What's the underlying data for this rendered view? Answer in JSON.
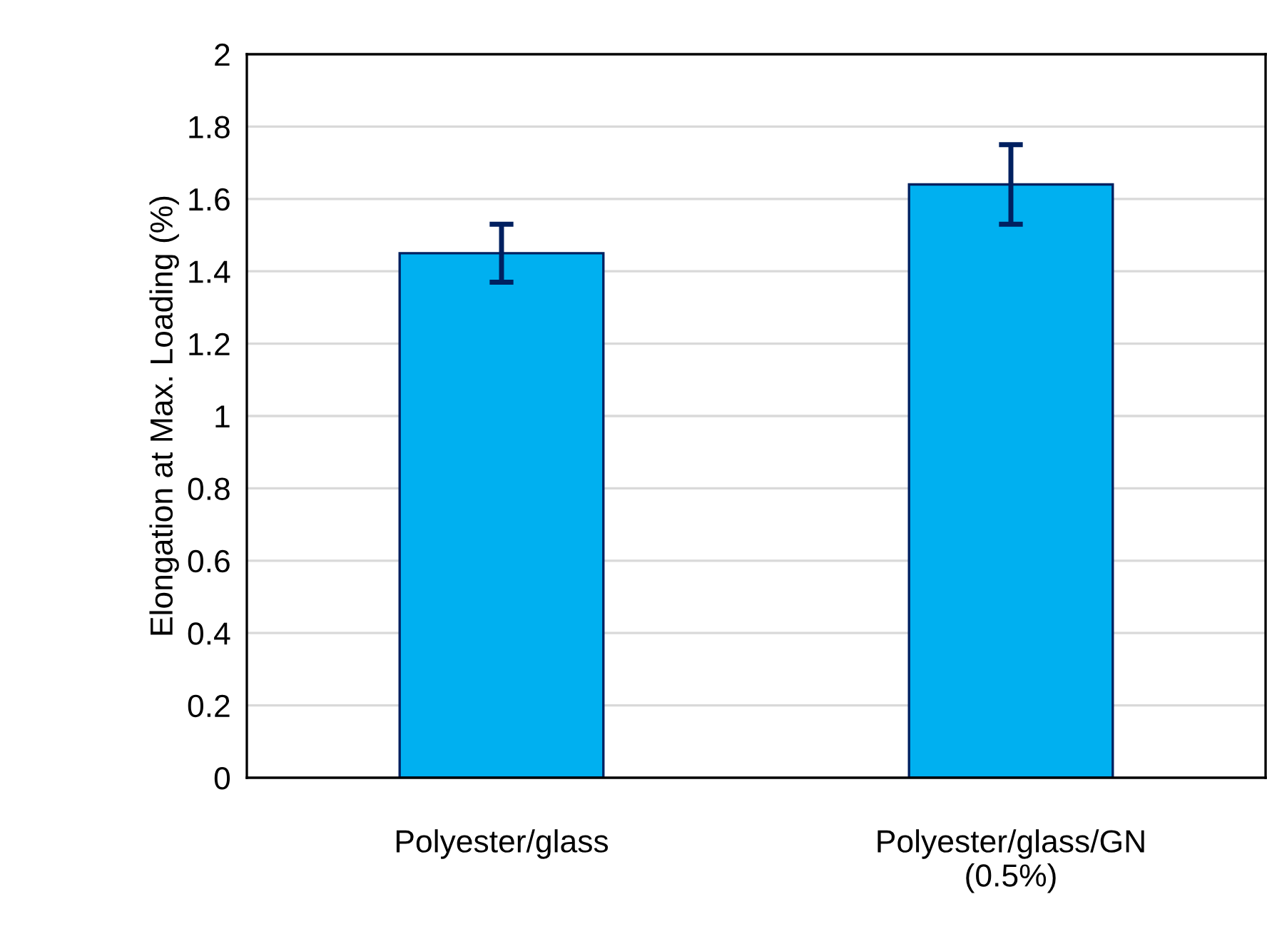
{
  "chart_data": {
    "type": "bar",
    "ylabel": "Elongation at Max. Loading (%)",
    "categories": [
      "Polyester/glass",
      "Polyester/glass/GN\n(0.5%)"
    ],
    "values": [
      1.45,
      1.64
    ],
    "errors": [
      0.08,
      0.11
    ],
    "color": "#00b0f0",
    "ylim": [
      0,
      2
    ],
    "yticks": [
      0,
      0.2,
      0.4,
      0.6,
      0.8,
      1,
      1.2,
      1.4,
      1.6,
      1.8,
      2
    ],
    "grid": "y"
  }
}
